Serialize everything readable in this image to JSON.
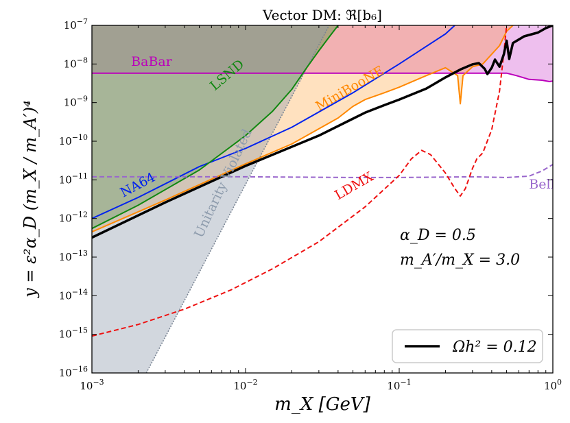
{
  "chart_data": {
    "type": "line",
    "title": "Vector DM: ℜ[b₆]",
    "xlabel": "m_X [GeV]",
    "ylabel": "y = ε²α_D (m_X / m_A′)⁴",
    "xscale": "log",
    "yscale": "log",
    "xlim": [
      0.001,
      1
    ],
    "ylim": [
      1e-16,
      1e-07
    ],
    "x_ticks": [
      {
        "value": 0.001,
        "base": "10",
        "exp": "−3"
      },
      {
        "value": 0.01,
        "base": "10",
        "exp": "−2"
      },
      {
        "value": 0.1,
        "base": "10",
        "exp": "−1"
      },
      {
        "value": 1,
        "base": "10",
        "exp": "0"
      }
    ],
    "y_ticks": [
      {
        "value": 1e-16,
        "base": "10",
        "exp": "−16"
      },
      {
        "value": 1e-15,
        "base": "10",
        "exp": "−15"
      },
      {
        "value": 1e-14,
        "base": "10",
        "exp": "−14"
      },
      {
        "value": 1e-13,
        "base": "10",
        "exp": "−13"
      },
      {
        "value": 1e-12,
        "base": "10",
        "exp": "−12"
      },
      {
        "value": 1e-11,
        "base": "10",
        "exp": "−11"
      },
      {
        "value": 1e-10,
        "base": "10",
        "exp": "−10"
      },
      {
        "value": 1e-09,
        "base": "10",
        "exp": "−9"
      },
      {
        "value": 1e-08,
        "base": "10",
        "exp": "−8"
      },
      {
        "value": 1e-07,
        "base": "10",
        "exp": "−7"
      }
    ],
    "params": {
      "alpha_d": "α_D = 0.5",
      "mass_ratio": "m_A′/m_X = 3.0"
    },
    "legend": {
      "position": "lower-right",
      "entries": [
        {
          "label": "Ωh² = 0.12",
          "color": "#000000"
        }
      ]
    },
    "regions": [
      {
        "name": "Unitarity Violated",
        "color": "#8e9cad",
        "opacity": 0.4,
        "boundary": [
          [
            0.00226,
            1e-16
          ],
          [
            0.035,
            1e-07
          ]
        ]
      }
    ],
    "series": [
      {
        "name": "Ωh² = 0.12",
        "color": "#000000",
        "style": "solid",
        "width": 3.5,
        "points": [
          [
            0.001,
            3.2e-13
          ],
          [
            0.003,
            2.6e-12
          ],
          [
            0.01,
            2.3e-11
          ],
          [
            0.03,
            1.4e-10
          ],
          [
            0.06,
            5.5e-10
          ],
          [
            0.08,
            8.6e-10
          ],
          [
            0.1,
            1.2e-09
          ],
          [
            0.15,
            2.3e-09
          ],
          [
            0.2,
            4.5e-09
          ],
          [
            0.25,
            7.2e-09
          ],
          [
            0.3,
            9.8e-09
          ],
          [
            0.33,
            1.05e-08
          ],
          [
            0.36,
            7.5e-09
          ],
          [
            0.375,
            5.5e-09
          ],
          [
            0.4,
            8e-09
          ],
          [
            0.42,
            1.3e-08
          ],
          [
            0.45,
            8.5e-09
          ],
          [
            0.48,
            1.8e-08
          ],
          [
            0.5,
            4e-08
          ],
          [
            0.52,
            1.35e-08
          ],
          [
            0.55,
            3.5e-08
          ],
          [
            0.65,
            5.2e-08
          ],
          [
            0.8,
            6.5e-08
          ],
          [
            0.9,
            8.5e-08
          ],
          [
            1.0,
            1e-07
          ]
        ]
      },
      {
        "name": "BaBar",
        "color": "#bb00bb",
        "style": "solid",
        "width": 2,
        "fill": "#bb00bb",
        "fill_opacity": 0.25,
        "points": [
          [
            0.001,
            5.8e-09
          ],
          [
            0.3,
            5.8e-09
          ],
          [
            0.5,
            5.8e-09
          ],
          [
            0.58,
            5e-09
          ],
          [
            0.7,
            4e-09
          ],
          [
            0.85,
            3.8e-09
          ],
          [
            0.95,
            3.5e-09
          ],
          [
            1.0,
            3.6e-09
          ]
        ]
      },
      {
        "name": "MiniBooNE",
        "color": "#ff8800",
        "style": "solid",
        "width": 2,
        "fill": "#ff8800",
        "fill_opacity": 0.25,
        "points": [
          [
            0.001,
            4.5e-13
          ],
          [
            0.003,
            3e-12
          ],
          [
            0.01,
            2.6e-11
          ],
          [
            0.02,
            8.5e-11
          ],
          [
            0.04,
            4e-10
          ],
          [
            0.05,
            8e-10
          ],
          [
            0.06,
            1.2e-09
          ],
          [
            0.08,
            1.8e-09
          ],
          [
            0.1,
            2.5e-09
          ],
          [
            0.15,
            5e-09
          ],
          [
            0.2,
            8e-09
          ],
          [
            0.24,
            5e-09
          ],
          [
            0.25,
            9.3e-10
          ],
          [
            0.26,
            5e-09
          ],
          [
            0.3,
            8.5e-09
          ],
          [
            0.35,
            1e-08
          ],
          [
            0.45,
            3e-08
          ],
          [
            0.5,
            7e-08
          ],
          [
            0.55,
            1e-07
          ]
        ]
      },
      {
        "name": "NA64",
        "color": "#0022ee",
        "style": "solid",
        "width": 2,
        "points": [
          [
            0.001,
            1e-12
          ],
          [
            0.002,
            3.5e-12
          ],
          [
            0.005,
            2.2e-11
          ],
          [
            0.01,
            6.5e-11
          ],
          [
            0.02,
            2.3e-10
          ],
          [
            0.05,
            1.8e-09
          ],
          [
            0.1,
            1e-08
          ],
          [
            0.2,
            6e-08
          ],
          [
            0.23,
            1e-07
          ]
        ]
      },
      {
        "name": "LSND",
        "color": "#118811",
        "style": "solid",
        "width": 2,
        "fill": "#118811",
        "fill_opacity": 0.3,
        "points": [
          [
            0.001,
            5.5e-13
          ],
          [
            0.002,
            2.2e-12
          ],
          [
            0.005,
            1.8e-11
          ],
          [
            0.01,
            1.4e-10
          ],
          [
            0.015,
            6e-10
          ],
          [
            0.02,
            2.2e-09
          ],
          [
            0.025,
            8e-09
          ],
          [
            0.03,
            2.2e-08
          ],
          [
            0.035,
            5e-08
          ],
          [
            0.04,
            1e-07
          ]
        ]
      },
      {
        "name": "Belle II",
        "color": "#9966cc",
        "style": "dashed",
        "width": 2,
        "points": [
          [
            0.001,
            1.2e-11
          ],
          [
            0.01,
            1.2e-11
          ],
          [
            0.05,
            1.15e-11
          ],
          [
            0.1,
            1.15e-11
          ],
          [
            0.3,
            1.2e-11
          ],
          [
            0.5,
            1.15e-11
          ],
          [
            0.7,
            1.25e-11
          ],
          [
            0.85,
            1.7e-11
          ],
          [
            1.0,
            2.5e-11
          ]
        ]
      },
      {
        "name": "LDMX",
        "color": "#ee1111",
        "style": "dashed",
        "width": 2,
        "points": [
          [
            0.001,
            9e-16
          ],
          [
            0.002,
            1.8e-15
          ],
          [
            0.004,
            4.5e-15
          ],
          [
            0.008,
            1.4e-14
          ],
          [
            0.015,
            5e-14
          ],
          [
            0.03,
            2.5e-13
          ],
          [
            0.06,
            2e-12
          ],
          [
            0.1,
            1.3e-11
          ],
          [
            0.12,
            3.5e-11
          ],
          [
            0.14,
            5.8e-11
          ],
          [
            0.16,
            4.5e-11
          ],
          [
            0.2,
            1.5e-11
          ],
          [
            0.23,
            6e-12
          ],
          [
            0.25,
            3.8e-12
          ],
          [
            0.27,
            6e-12
          ],
          [
            0.3,
            2e-11
          ],
          [
            0.32,
            3.5e-11
          ],
          [
            0.35,
            5e-11
          ],
          [
            0.4,
            2e-10
          ],
          [
            0.45,
            2e-09
          ],
          [
            0.48,
            2e-08
          ],
          [
            0.5,
            1e-07
          ]
        ]
      }
    ],
    "annotations": [
      {
        "text": "BaBar",
        "color": "#bb00bb",
        "x": 0.0018,
        "y": 9e-09,
        "rotation": 0,
        "size": 19
      },
      {
        "text": "LSND",
        "color": "#118811",
        "x": 0.0063,
        "y": 2e-09,
        "rotation": -40,
        "size": 19
      },
      {
        "text": "MiniBooNE",
        "color": "#ff8800",
        "x": 0.03,
        "y": 6e-10,
        "rotation": -30,
        "size": 19
      },
      {
        "text": "NA64",
        "color": "#0022ee",
        "x": 0.0016,
        "y": 3.5e-12,
        "rotation": -28,
        "size": 19
      },
      {
        "text": "Unitarity Violated",
        "color": "#8e9cad",
        "x": 0.0052,
        "y": 3e-13,
        "rotation": -65,
        "size": 19
      },
      {
        "text": "Belle II",
        "color": "#9966cc",
        "x": 0.7,
        "y": 6e-12,
        "rotation": 0,
        "size": 19
      },
      {
        "text": "LDMX",
        "color": "#ee1111",
        "x": 0.04,
        "y": 3e-12,
        "rotation": -30,
        "size": 19
      }
    ]
  }
}
